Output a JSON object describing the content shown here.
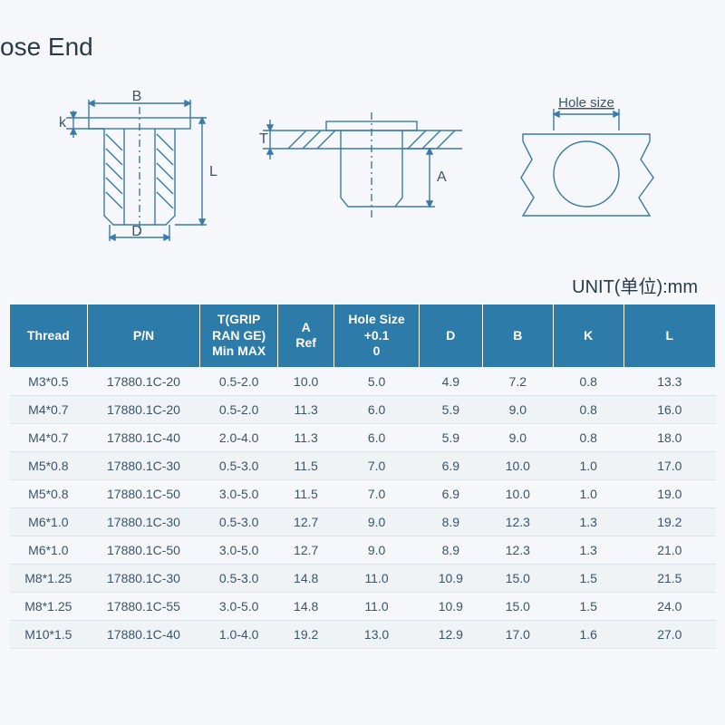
{
  "title": "ose End",
  "unit_label": "UNIT(单位):mm",
  "diagram_labels": {
    "d1_B": "B",
    "d1_k": "k",
    "d1_L": "L",
    "d1_D": "D",
    "d2_T": "T",
    "d2_A": "A",
    "d3_hole": "Hole size"
  },
  "diagram_style": {
    "stroke": "#3a7aa8",
    "stroke_width": 1.4,
    "font_size": 16,
    "text_color": "#3a5566"
  },
  "table": {
    "header_bg": "#2c7ba8",
    "header_fg": "#ffffff",
    "columns": [
      "Thread",
      "P/N",
      "T(GRIP RAN GE) Min MAX",
      "A Ref",
      "Hole Size +0.1 0",
      "D",
      "B",
      "K",
      "L"
    ],
    "col_widths_pct": [
      11,
      16,
      11,
      8,
      12,
      9,
      10,
      10,
      13
    ],
    "rows": [
      [
        "M3*0.5",
        "17880.1C-20",
        "0.5-2.0",
        "10.0",
        "5.0",
        "4.9",
        "7.2",
        "0.8",
        "13.3"
      ],
      [
        "M4*0.7",
        "17880.1C-20",
        "0.5-2.0",
        "11.3",
        "6.0",
        "5.9",
        "9.0",
        "0.8",
        "16.0"
      ],
      [
        "M4*0.7",
        "17880.1C-40",
        "2.0-4.0",
        "11.3",
        "6.0",
        "5.9",
        "9.0",
        "0.8",
        "18.0"
      ],
      [
        "M5*0.8",
        "17880.1C-30",
        "0.5-3.0",
        "11.5",
        "7.0",
        "6.9",
        "10.0",
        "1.0",
        "17.0"
      ],
      [
        "M5*0.8",
        "17880.1C-50",
        "3.0-5.0",
        "11.5",
        "7.0",
        "6.9",
        "10.0",
        "1.0",
        "19.0"
      ],
      [
        "M6*1.0",
        "17880.1C-30",
        "0.5-3.0",
        "12.7",
        "9.0",
        "8.9",
        "12.3",
        "1.3",
        "19.2"
      ],
      [
        "M6*1.0",
        "17880.1C-50",
        "3.0-5.0",
        "12.7",
        "9.0",
        "8.9",
        "12.3",
        "1.3",
        "21.0"
      ],
      [
        "M8*1.25",
        "17880.1C-30",
        "0.5-3.0",
        "14.8",
        "11.0",
        "10.9",
        "15.0",
        "1.5",
        "21.5"
      ],
      [
        "M8*1.25",
        "17880.1C-55",
        "3.0-5.0",
        "14.8",
        "11.0",
        "10.9",
        "15.0",
        "1.5",
        "24.0"
      ],
      [
        "M10*1.5",
        "17880.1C-40",
        "1.0-4.0",
        "19.2",
        "13.0",
        "12.9",
        "17.0",
        "1.6",
        "27.0"
      ]
    ]
  }
}
